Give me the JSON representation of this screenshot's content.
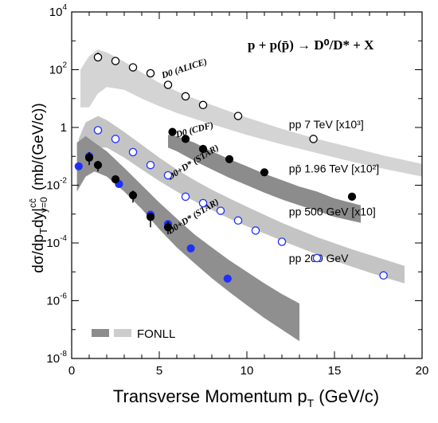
{
  "chart_data": {
    "type": "scatter",
    "reaction_label": "p + p(p̄) → D⁰/D* + X",
    "xlabel": "Transverse Momentum p_T (GeV/c)",
    "ylabel": "dσ/dp_T dy|cc̄ y=0 (mb/(GeV/c))",
    "x_ticks": [
      "0",
      "5",
      "10",
      "15",
      "20"
    ],
    "y_ticks": [
      "10-8",
      "10-6",
      "10-4",
      "10-2",
      "1",
      "102",
      "104"
    ],
    "xlim": [
      0,
      20
    ],
    "ylim": [
      1e-08,
      10000.0
    ],
    "y_scale": "log",
    "legend": {
      "label": "FONLL",
      "placement": "bottom-left"
    },
    "bands": [
      {
        "name": "pp 7 TeV",
        "color": "#d4d4d4",
        "x": [
          0.5,
          1.0,
          1.5,
          2.0,
          3.0,
          4.0,
          5.0,
          6.0,
          7.0,
          8.0,
          9.0,
          10.0,
          12.0,
          14.0,
          16.0,
          18.0,
          20.0
        ],
        "low": [
          5,
          5,
          15,
          25,
          20,
          10,
          5.5,
          3.2,
          2.0,
          1.3,
          0.85,
          0.55,
          0.26,
          0.13,
          0.065,
          0.035,
          0.02
        ],
        "high": [
          100,
          300,
          500,
          400,
          190,
          80,
          35,
          18,
          10,
          6,
          3.6,
          2.2,
          0.9,
          0.4,
          0.2,
          0.1,
          0.055
        ]
      },
      {
        "name": "pp̄ 1.96 TeV",
        "color": "#8c8c8c",
        "x": [
          5.5,
          6.0,
          7.0,
          8.0,
          9.0,
          10.0,
          11.0,
          12.0,
          13.0,
          14.0,
          15.0,
          16.5
        ],
        "low": [
          0.2,
          0.15,
          0.07,
          0.035,
          0.018,
          0.01,
          0.0055,
          0.0032,
          0.002,
          0.0013,
          0.0008,
          0.0005
        ],
        "high": [
          0.55,
          0.5,
          0.3,
          0.15,
          0.08,
          0.045,
          0.025,
          0.015,
          0.009,
          0.006,
          0.0035,
          0.002
        ]
      },
      {
        "name": "pp 500 GeV",
        "color": "#c4c4c4",
        "x": [
          0.4,
          0.8,
          1.5,
          2.0,
          3.0,
          4.0,
          5.0,
          6.0,
          7.0,
          8.0,
          9.0,
          10.0,
          12.0,
          14.0,
          16.0,
          18.0,
          19.0
        ],
        "low": [
          0.02,
          0.06,
          0.2,
          0.2,
          0.09,
          0.035,
          0.014,
          0.006,
          0.0028,
          0.0014,
          0.0007,
          0.00038,
          0.00012,
          4e-05,
          1.5e-05,
          6e-06,
          4e-06
        ],
        "high": [
          0.4,
          1.5,
          2.5,
          1.8,
          0.7,
          0.25,
          0.09,
          0.035,
          0.015,
          0.007,
          0.0035,
          0.0018,
          0.0005,
          0.00016,
          6e-05,
          2.5e-05,
          1.6e-05
        ]
      },
      {
        "name": "pp 200 GeV",
        "color": "#8f8f8f",
        "x": [
          0.3,
          0.8,
          1.3,
          2.0,
          3.0,
          4.0,
          5.0,
          6.0,
          7.0,
          8.0,
          9.0,
          10.0,
          11.0,
          12.0,
          13.0
        ],
        "low": [
          0.006,
          0.02,
          0.03,
          0.02,
          0.006,
          0.0015,
          0.0003,
          7e-05,
          2e-05,
          6e-06,
          2e-06,
          7e-07,
          2.5e-07,
          1e-07,
          4e-08
        ],
        "high": [
          0.3,
          0.5,
          0.3,
          0.15,
          0.04,
          0.01,
          0.0025,
          0.0007,
          0.0002,
          7e-05,
          2.5e-05,
          1e-05,
          4e-06,
          1.7e-06,
          8e-07
        ]
      }
    ],
    "series": [
      {
        "name": "D⁰ (ALICE)",
        "marker": "open-circle",
        "color": "#000000",
        "x": [
          1.5,
          2.5,
          3.5,
          4.5,
          5.5,
          6.5,
          7.5,
          9.5,
          13.8
        ],
        "y": [
          270,
          200,
          120,
          75,
          30,
          12,
          6,
          2.5,
          0.4
        ],
        "err_low": [
          40,
          30,
          0,
          0,
          0,
          0,
          0,
          0,
          0
        ],
        "err_high": [
          120,
          0,
          0,
          0,
          0,
          0,
          0,
          0,
          0
        ]
      },
      {
        "name": "D⁰ (CDF)",
        "marker": "filled-circle",
        "color": "#000000",
        "x": [
          5.75,
          6.5,
          7.5,
          9.0,
          11.0,
          16.0
        ],
        "y": [
          0.7,
          0.4,
          0.18,
          0.08,
          0.028,
          0.004
        ],
        "err_low": [
          0,
          0,
          0,
          0,
          0,
          0
        ],
        "err_high": [
          0,
          0,
          0,
          0,
          0,
          0
        ]
      },
      {
        "name": "D⁰+D* (STAR) pp 500 GeV",
        "marker": "open-circle",
        "color": "#1f2fff",
        "x": [
          1.5,
          2.5,
          3.5,
          4.5,
          5.5,
          6.5,
          7.5,
          8.5,
          9.5,
          10.5,
          12.0,
          14.0,
          17.8
        ],
        "y": [
          0.8,
          0.4,
          0.14,
          0.05,
          0.022,
          0.004,
          0.0024,
          0.0013,
          0.0006,
          0.00027,
          0.00011,
          3e-05,
          7.5e-06
        ],
        "err_low": [
          0,
          0,
          0,
          0,
          0,
          0,
          0,
          0,
          0,
          0,
          0,
          0,
          0
        ],
        "err_high": [
          0,
          0,
          0,
          0,
          0,
          0,
          0,
          0,
          0,
          0,
          0,
          0,
          0
        ]
      },
      {
        "name": "D⁰+D* (STAR) pp 200 GeV",
        "marker": "filled-circle",
        "color": "#1f2fff",
        "x": [
          0.4,
          1.0,
          2.7,
          4.5,
          5.5,
          6.8,
          8.9
        ],
        "y": [
          0.045,
          0.1,
          0.011,
          0.00095,
          0.00045,
          6.5e-05,
          5.8e-06
        ],
        "err_low": [
          0,
          0.05,
          0,
          0,
          0,
          0,
          0
        ],
        "err_high": [
          0,
          0,
          0,
          0,
          0,
          0,
          0
        ]
      },
      {
        "name": "D* (STAR) pp 200 GeV",
        "marker": "filled-circle",
        "color": "#000000",
        "x": [
          1.0,
          1.5,
          2.5,
          3.5,
          4.5,
          5.5
        ],
        "y": [
          0.09,
          0.05,
          0.016,
          0.0045,
          0.0008,
          0.00035
        ],
        "err_low": [
          0.04,
          0.02,
          0,
          0.002,
          0.00045,
          0.00015
        ],
        "err_high": [
          0.05,
          0.02,
          0,
          0.002,
          0.0003,
          0.0002
        ]
      }
    ],
    "curve_labels": [
      {
        "text": "D0 (ALICE)",
        "x": 5.2,
        "y": 50,
        "angle": -18
      },
      {
        "text": "D0 (CDF)",
        "x": 6.0,
        "y": 0.45,
        "angle": -15
      },
      {
        "text": "D0+D* (STAR)",
        "x": 5.6,
        "y": 0.015,
        "angle": -32
      },
      {
        "text": "D0+D* (STAR)",
        "x": 5.6,
        "y": 0.0002,
        "angle": -32
      }
    ],
    "dataset_labels": [
      {
        "text": "pp 7 TeV [x10³]",
        "x": 12.4,
        "y": 0.95
      },
      {
        "text": "pp̄ 1.96 TeV [x10²]",
        "x": 12.4,
        "y": 0.028
      },
      {
        "text": "pp 500 GeV [x10]",
        "x": 12.4,
        "y": 0.0009
      },
      {
        "text": "pp 200 GeV",
        "x": 12.4,
        "y": 2.2e-05
      }
    ]
  }
}
